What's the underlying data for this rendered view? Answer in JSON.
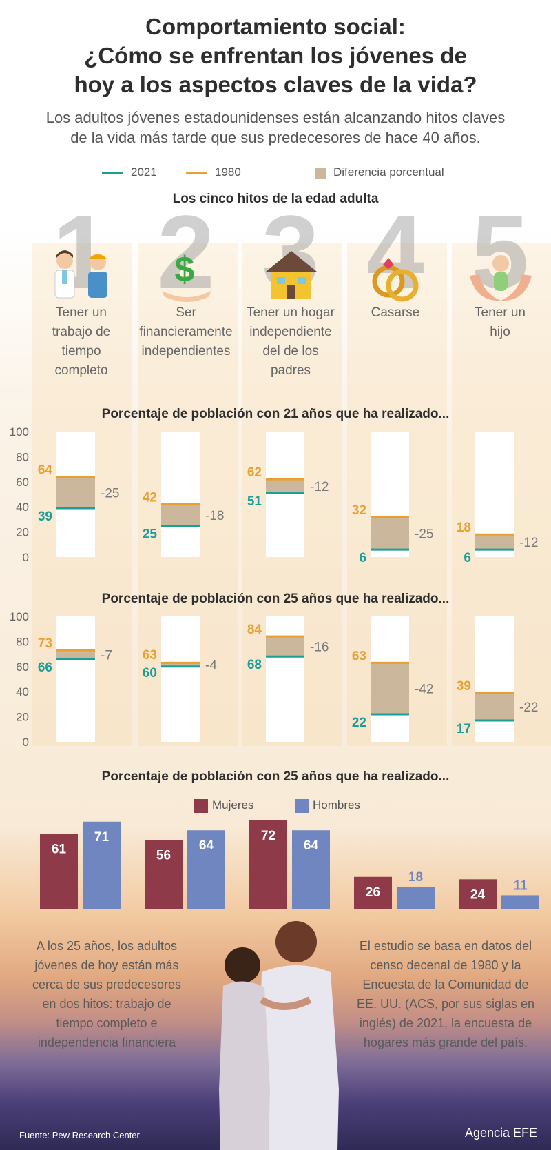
{
  "header": {
    "title_lines": [
      "Comportamiento social:",
      "¿Cómo se enfrentan los jóvenes de",
      "hoy a los aspectos claves de la vida?"
    ],
    "subtitle_lines": [
      "Los adultos jóvenes estadounidenses están alcanzando hitos claves",
      "de la vida más tarde que sus predecesores de hace 40 años."
    ]
  },
  "legend": {
    "y2021": "2021",
    "y1980": "1980",
    "diff": "Diferencia porcentual"
  },
  "colors": {
    "c2021": "#1a9e9a",
    "c1980": "#e8a030",
    "diff": "#cbb79c",
    "mujeres": "#8e3a48",
    "hombres": "#6f86c0"
  },
  "milestones_heading": "Los cinco hitos de la edad adulta",
  "milestones": [
    {
      "num": "1",
      "icon": "workers-icon",
      "lines": [
        "Tener un",
        "trabajo de",
        "tiempo",
        "completo"
      ]
    },
    {
      "num": "2",
      "icon": "dollar-hand-icon",
      "lines": [
        "Ser",
        "financieramente",
        "independientes"
      ]
    },
    {
      "num": "3",
      "icon": "house-icon",
      "lines": [
        "Tener un hogar",
        "independiente",
        "del de los",
        "padres"
      ]
    },
    {
      "num": "4",
      "icon": "rings-icon",
      "lines": [
        "Casarse"
      ]
    },
    {
      "num": "5",
      "icon": "baby-hands-icon",
      "lines": [
        "Tener un",
        "hijo"
      ]
    }
  ],
  "chart_data": [
    {
      "type": "range",
      "title": "Porcentaje de población con 21 años que ha realizado...",
      "ylim": [
        0,
        100
      ],
      "yticks": [
        0,
        20,
        40,
        60,
        80,
        100
      ],
      "series": [
        {
          "name": "2021",
          "values": [
            39,
            25,
            51,
            6,
            6
          ]
        },
        {
          "name": "1980",
          "values": [
            64,
            42,
            62,
            32,
            18
          ]
        }
      ],
      "differences": [
        "-25",
        "-18",
        "-12",
        "-25",
        "-12"
      ]
    },
    {
      "type": "range",
      "title": "Porcentaje de población con 25 años que ha realizado...",
      "ylim": [
        0,
        100
      ],
      "yticks": [
        0,
        20,
        40,
        60,
        80,
        100
      ],
      "series": [
        {
          "name": "2021",
          "values": [
            66,
            60,
            68,
            22,
            17
          ]
        },
        {
          "name": "1980",
          "values": [
            73,
            63,
            84,
            63,
            39
          ]
        }
      ],
      "differences": [
        "-7",
        "-4",
        "-16",
        "-42",
        "-22"
      ]
    },
    {
      "type": "bar",
      "title": "Porcentaje de población con 25 años que ha realizado...",
      "ylim": [
        0,
        80
      ],
      "series": [
        {
          "name": "Mujeres",
          "values": [
            61,
            56,
            72,
            26,
            24
          ]
        },
        {
          "name": "Hombres",
          "values": [
            71,
            64,
            64,
            18,
            11
          ]
        }
      ]
    }
  ],
  "notes": {
    "left_lines": [
      "A los 25 años, los adultos",
      "jóvenes de hoy están más",
      "cerca de sus predecesores",
      "en dos hitos: trabajo de",
      "tiempo completo e",
      "independencia financiera"
    ],
    "right_lines": [
      "El estudio se basa en datos del",
      "censo decenal de 1980 y la",
      "Encuesta de la Comunidad de",
      "EE. UU. (ACS, por sus siglas en",
      "inglés) de 2021, la encuesta de",
      "hogares más grande del país."
    ]
  },
  "footer": {
    "source": "Fuente: Pew Research Center",
    "agency": "Agencia EFE"
  }
}
